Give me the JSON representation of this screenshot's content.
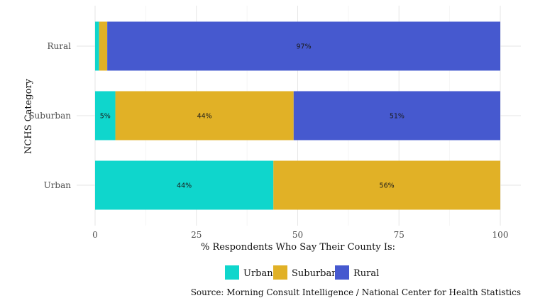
{
  "chart_data": {
    "type": "bar",
    "orientation": "horizontal",
    "stacked": true,
    "categories": [
      "Rural",
      "Suburban",
      "Urban"
    ],
    "series": [
      {
        "name": "Urban",
        "color": "#0fd6cc",
        "values": [
          1,
          5,
          44
        ],
        "labels": [
          "",
          "5%",
          "44%"
        ]
      },
      {
        "name": "Suburban",
        "color": "#e1b126",
        "values": [
          2,
          44,
          56
        ],
        "labels": [
          "",
          "44%",
          "56%"
        ]
      },
      {
        "name": "Rural",
        "color": "#4659cf",
        "values": [
          97,
          51,
          0
        ],
        "labels": [
          "97%",
          "51%",
          ""
        ]
      }
    ],
    "xlabel": "% Respondents Who Say Their County Is:",
    "ylabel": "NCHS Category",
    "xlim": [
      0,
      100
    ],
    "xticks": [
      0,
      25,
      50,
      75,
      100
    ],
    "grid": true,
    "legend": "bottom",
    "caption": "Source: Morning Consult Intelligence / National Center for Health Statistics"
  }
}
